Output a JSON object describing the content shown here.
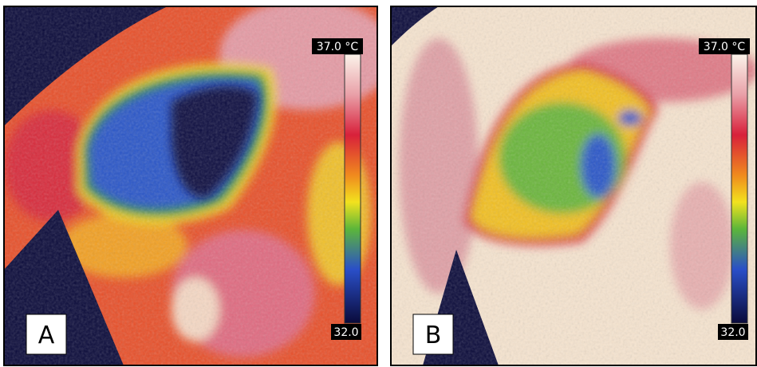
{
  "panels": [
    {
      "label": "A",
      "scale_max": "37.0 °C",
      "scale_min": "32.0"
    },
    {
      "label": "B",
      "scale_max": "37.0 °C",
      "scale_min": "32.0"
    }
  ]
}
